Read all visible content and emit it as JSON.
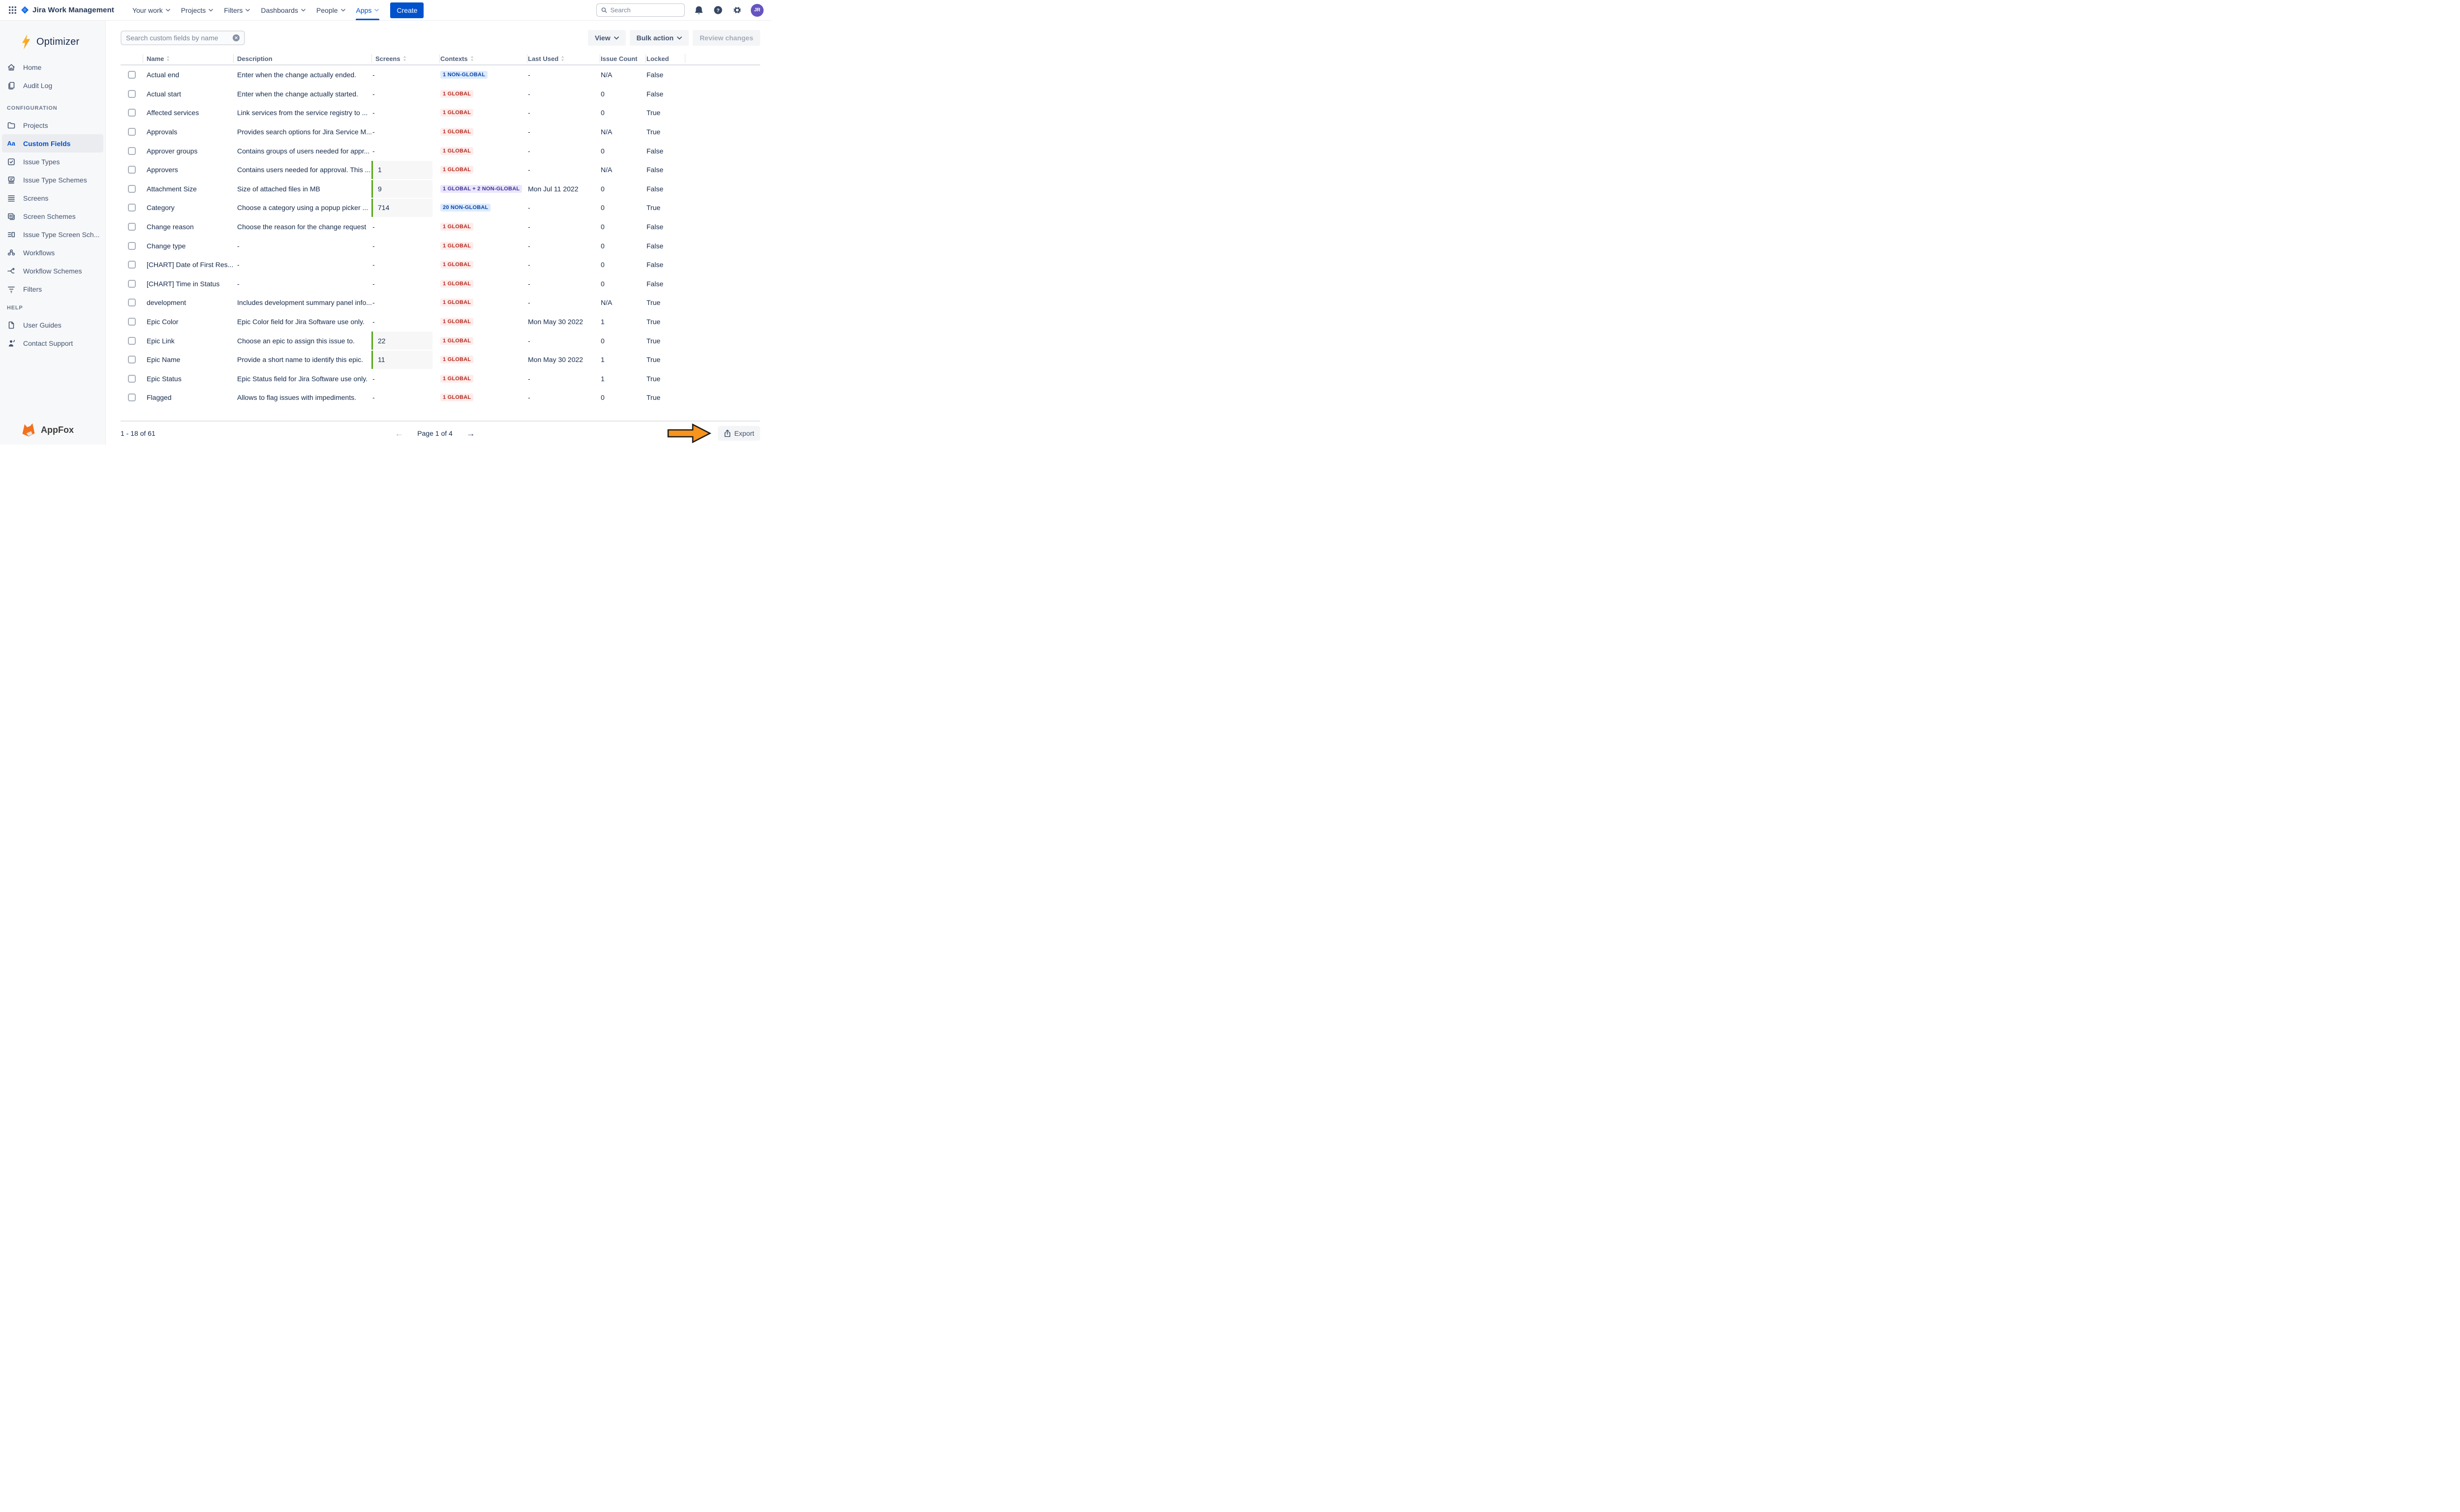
{
  "topnav": {
    "product": "Jira Work Management",
    "menus": [
      {
        "label": "Your work",
        "active": false
      },
      {
        "label": "Projects",
        "active": false
      },
      {
        "label": "Filters",
        "active": false
      },
      {
        "label": "Dashboards",
        "active": false
      },
      {
        "label": "People",
        "active": false
      },
      {
        "label": "Apps",
        "active": true
      }
    ],
    "create_label": "Create",
    "search_placeholder": "Search",
    "avatar_initials": "JR"
  },
  "sidebar": {
    "app_name": "Optimizer",
    "sections": [
      {
        "label": "",
        "items": [
          {
            "icon": "home",
            "label": "Home",
            "active": false
          },
          {
            "icon": "audit-log",
            "label": "Audit Log",
            "active": false
          }
        ]
      },
      {
        "label": "CONFIGURATION",
        "items": [
          {
            "icon": "folder",
            "label": "Projects",
            "active": false
          },
          {
            "icon": "custom-fields",
            "label": "Custom Fields",
            "active": true
          },
          {
            "icon": "issue-types",
            "label": "Issue Types",
            "active": false
          },
          {
            "icon": "issue-type-schemes",
            "label": "Issue Type Schemes",
            "active": false
          },
          {
            "icon": "screens",
            "label": "Screens",
            "active": false
          },
          {
            "icon": "screen-schemes",
            "label": "Screen Schemes",
            "active": false
          },
          {
            "icon": "issue-type-screen-schemes",
            "label": "Issue Type Screen Sch...",
            "active": false
          },
          {
            "icon": "workflows",
            "label": "Workflows",
            "active": false
          },
          {
            "icon": "workflow-schemes",
            "label": "Workflow Schemes",
            "active": false
          },
          {
            "icon": "filters",
            "label": "Filters",
            "active": false
          }
        ]
      },
      {
        "label": "HELP",
        "items": [
          {
            "icon": "user-guides",
            "label": "User Guides",
            "active": false
          },
          {
            "icon": "contact-support",
            "label": "Contact Support",
            "active": false
          }
        ]
      }
    ],
    "footer_brand": "AppFox"
  },
  "toolbar": {
    "search_placeholder": "Search custom fields by name",
    "view_label": "View",
    "bulk_action_label": "Bulk action",
    "review_changes_label": "Review changes"
  },
  "table": {
    "columns": [
      {
        "key": "name",
        "label": "Name",
        "sortable": true
      },
      {
        "key": "description",
        "label": "Description",
        "sortable": false
      },
      {
        "key": "screens",
        "label": "Screens",
        "sortable": true
      },
      {
        "key": "contexts",
        "label": "Contexts",
        "sortable": true
      },
      {
        "key": "last_used",
        "label": "Last Used",
        "sortable": true
      },
      {
        "key": "issue_count",
        "label": "Issue Count",
        "sortable": false
      },
      {
        "key": "locked",
        "label": "Locked",
        "sortable": false
      }
    ],
    "rows": [
      {
        "name": "Actual end",
        "description": "Enter when the change actually ended.",
        "screens": "-",
        "context": "1 NON-GLOBAL",
        "context_type": "non-global",
        "last_used": "-",
        "issue_count": "N/A",
        "locked": "False"
      },
      {
        "name": "Actual start",
        "description": "Enter when the change actually started.",
        "screens": "-",
        "context": "1 GLOBAL",
        "context_type": "global",
        "last_used": "-",
        "issue_count": "0",
        "locked": "False"
      },
      {
        "name": "Affected services",
        "description": "Link services from the service registry to ...",
        "screens": "-",
        "context": "1 GLOBAL",
        "context_type": "global",
        "last_used": "-",
        "issue_count": "0",
        "locked": "True"
      },
      {
        "name": "Approvals",
        "description": "Provides search options for Jira Service M...",
        "screens": "-",
        "context": "1 GLOBAL",
        "context_type": "global",
        "last_used": "-",
        "issue_count": "N/A",
        "locked": "True"
      },
      {
        "name": "Approver groups",
        "description": "Contains groups of users needed for appr...",
        "screens": "-",
        "context": "1 GLOBAL",
        "context_type": "global",
        "last_used": "-",
        "issue_count": "0",
        "locked": "False"
      },
      {
        "name": "Approvers",
        "description": "Contains users needed for approval. This ...",
        "screens": "1",
        "context": "1 GLOBAL",
        "context_type": "global",
        "last_used": "-",
        "issue_count": "N/A",
        "locked": "False"
      },
      {
        "name": "Attachment Size",
        "description": "Size of attached files in MB",
        "screens": "9",
        "context": "1 GLOBAL + 2 NON-GLOBAL",
        "context_type": "mixed",
        "last_used": "Mon Jul 11 2022",
        "issue_count": "0",
        "locked": "False"
      },
      {
        "name": "Category",
        "description": "Choose a category using a popup picker ...",
        "screens": "714",
        "context": "20 NON-GLOBAL",
        "context_type": "non-global",
        "last_used": "-",
        "issue_count": "0",
        "locked": "True"
      },
      {
        "name": "Change reason",
        "description": "Choose the reason for the change request",
        "screens": "-",
        "context": "1 GLOBAL",
        "context_type": "global",
        "last_used": "-",
        "issue_count": "0",
        "locked": "False"
      },
      {
        "name": "Change type",
        "description": "-",
        "screens": "-",
        "context": "1 GLOBAL",
        "context_type": "global",
        "last_used": "-",
        "issue_count": "0",
        "locked": "False"
      },
      {
        "name": "[CHART] Date of First Res...",
        "description": "-",
        "screens": "-",
        "context": "1 GLOBAL",
        "context_type": "global",
        "last_used": "-",
        "issue_count": "0",
        "locked": "False"
      },
      {
        "name": "[CHART] Time in Status",
        "description": "-",
        "screens": "-",
        "context": "1 GLOBAL",
        "context_type": "global",
        "last_used": "-",
        "issue_count": "0",
        "locked": "False"
      },
      {
        "name": "development",
        "description": "Includes development summary panel info...",
        "screens": "-",
        "context": "1 GLOBAL",
        "context_type": "global",
        "last_used": "-",
        "issue_count": "N/A",
        "locked": "True"
      },
      {
        "name": "Epic Color",
        "description": "Epic Color field for Jira Software use only.",
        "screens": "-",
        "context": "1 GLOBAL",
        "context_type": "global",
        "last_used": "Mon May 30 2022",
        "issue_count": "1",
        "locked": "True"
      },
      {
        "name": "Epic Link",
        "description": "Choose an epic to assign this issue to.",
        "screens": "22",
        "context": "1 GLOBAL",
        "context_type": "global",
        "last_used": "-",
        "issue_count": "0",
        "locked": "True"
      },
      {
        "name": "Epic Name",
        "description": "Provide a short name to identify this epic.",
        "screens": "11",
        "context": "1 GLOBAL",
        "context_type": "global",
        "last_used": "Mon May 30 2022",
        "issue_count": "1",
        "locked": "True"
      },
      {
        "name": "Epic Status",
        "description": "Epic Status field for Jira Software use only.",
        "screens": "-",
        "context": "1 GLOBAL",
        "context_type": "global",
        "last_used": "-",
        "issue_count": "1",
        "locked": "True"
      },
      {
        "name": "Flagged",
        "description": "Allows to flag issues with impediments.",
        "screens": "-",
        "context": "1 GLOBAL",
        "context_type": "global",
        "last_used": "-",
        "issue_count": "0",
        "locked": "True"
      }
    ]
  },
  "footer": {
    "range_label": "1 - 18 of 61",
    "page_label": "Page 1 of 4",
    "export_label": "Export"
  },
  "colors": {
    "accent_blue": "#0052CC",
    "badge_global_text": "#AE2E24",
    "badge_global_bg": "#FFECEB",
    "badge_non_global_text": "#0747A6",
    "badge_non_global_bg": "#DEEBFF",
    "badge_mixed_text": "#403294",
    "badge_mixed_bg": "#EAE6FF",
    "screens_bar_green": "#54A718",
    "avatar_purple": "#6554C0",
    "annotation_orange": "#F7941D"
  }
}
